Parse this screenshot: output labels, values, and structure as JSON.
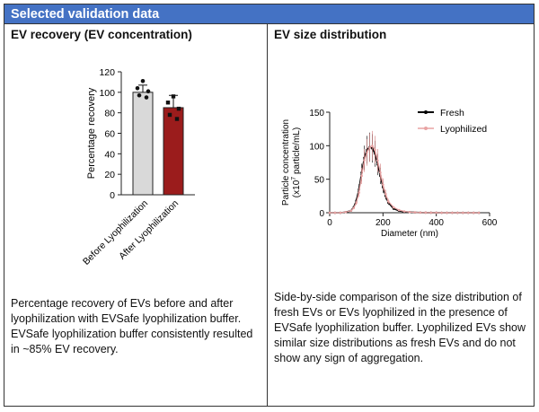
{
  "header": {
    "title": "Selected validation data"
  },
  "left": {
    "title": "EV recovery (EV concentration)",
    "caption": "Percentage recovery of EVs before and after lyophilization with EVSafe lyophilization buffer. EVSafe lyophilization buffer consistently resulted in ~85% EV recovery."
  },
  "right": {
    "title": "EV size distribution",
    "caption": "Side-by-side comparison of the size distribution of fresh EVs or EVs lyophilized in the presence of EVSafe lyophilization buffer. Lyophilized EVs show similar size distributions as fresh EVs and do not show any sign of aggregation."
  },
  "colors": {
    "header": "#4472c4",
    "before": "#d9d9d9",
    "after": "#9b1c1c",
    "fresh": "#000000",
    "lyophilized": "#e8a3a3"
  },
  "chart_data": [
    {
      "type": "bar",
      "categories": [
        "Before Lyophilization",
        "After Lyophilization"
      ],
      "values": [
        100,
        85
      ],
      "errors": [
        7,
        12
      ],
      "points": [
        [
          111,
          104,
          101,
          97,
          95
        ],
        [
          96,
          90,
          84,
          78,
          74
        ]
      ],
      "ylabel": "Percentage recovery",
      "ylim": [
        0,
        120
      ],
      "yticks": [
        0,
        20,
        40,
        60,
        80,
        100,
        120
      ]
    },
    {
      "type": "line",
      "xlabel": "Diameter (nm)",
      "ylabel_line1": "Particle concentration",
      "ylabel_line2": "(x10",
      "ylabel_sup": "7",
      "ylabel_line2_rest": " particle/mL)",
      "xlim": [
        0,
        600
      ],
      "ylim": [
        0,
        150
      ],
      "xticks": [
        0,
        200,
        400,
        600
      ],
      "yticks": [
        0,
        50,
        100,
        150
      ],
      "legend_position": "top-right",
      "series": [
        {
          "name": "Fresh",
          "x": [
            0,
            20,
            40,
            60,
            80,
            90,
            100,
            110,
            120,
            130,
            140,
            150,
            160,
            170,
            180,
            190,
            200,
            210,
            220,
            240,
            260,
            280,
            300,
            320,
            340,
            360,
            380,
            400,
            420,
            440,
            460,
            480,
            500,
            520,
            540,
            560
          ],
          "y": [
            0,
            0,
            0,
            1,
            3,
            8,
            18,
            35,
            60,
            82,
            94,
            98,
            96,
            88,
            72,
            55,
            38,
            25,
            15,
            6,
            3,
            1.5,
            1,
            0.5,
            0.3,
            0.2,
            0.1,
            0.1,
            0,
            0,
            0,
            0,
            0,
            0,
            0,
            0
          ]
        },
        {
          "name": "Lyophilized",
          "x": [
            0,
            20,
            40,
            60,
            80,
            90,
            100,
            110,
            120,
            130,
            140,
            150,
            160,
            170,
            180,
            190,
            200,
            210,
            220,
            240,
            260,
            280,
            300,
            320,
            340,
            360,
            380,
            400,
            420,
            440,
            460,
            480,
            500,
            520,
            540,
            560
          ],
          "y": [
            0,
            0,
            0,
            1,
            3,
            7,
            15,
            30,
            55,
            78,
            90,
            97,
            100,
            94,
            78,
            60,
            42,
            28,
            17,
            8,
            4,
            2,
            1,
            0.6,
            0.3,
            0.2,
            0.1,
            0.1,
            0,
            0,
            0,
            0,
            0,
            0,
            0,
            0
          ]
        }
      ]
    }
  ]
}
